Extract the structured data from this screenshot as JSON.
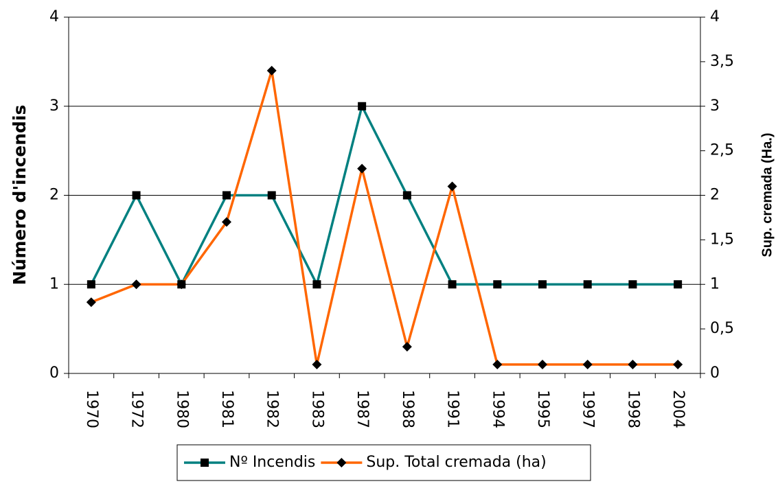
{
  "chart_data": {
    "type": "line",
    "categories": [
      "1970",
      "1972",
      "1980",
      "1981",
      "1982",
      "1983",
      "1987",
      "1988",
      "1991",
      "1994",
      "1995",
      "1997",
      "1998",
      "2004"
    ],
    "series": [
      {
        "name": "Nº Incendis",
        "color": "#008080",
        "marker": "square",
        "values": [
          1,
          2,
          1,
          2,
          2,
          1,
          3,
          2,
          1,
          1,
          1,
          1,
          1,
          1
        ]
      },
      {
        "name": "Sup. Total cremada (ha)",
        "color": "#ff6600",
        "marker": "diamond",
        "axis": "y2",
        "values": [
          0.8,
          1,
          1,
          1.7,
          3.4,
          0.1,
          2.3,
          0.3,
          2.1,
          0.1,
          0.1,
          0.1,
          0.1,
          0.1
        ]
      }
    ],
    "ylabel": "Número d'incendis",
    "y2label": "Sup. cremada (Ha.)",
    "ylim": [
      0,
      4
    ],
    "yticks": [
      0,
      1,
      2,
      3,
      4
    ],
    "y2lim": [
      0,
      4
    ],
    "y2ticks": [
      0,
      {
        "value": 0.5,
        "label": "0,5"
      },
      1,
      {
        "value": 1.5,
        "label": "1,5"
      },
      2,
      {
        "value": 2.5,
        "label": "2,5"
      },
      3,
      {
        "value": 3.5,
        "label": "3,5"
      },
      4
    ],
    "grid": true,
    "legend": "bottom"
  }
}
